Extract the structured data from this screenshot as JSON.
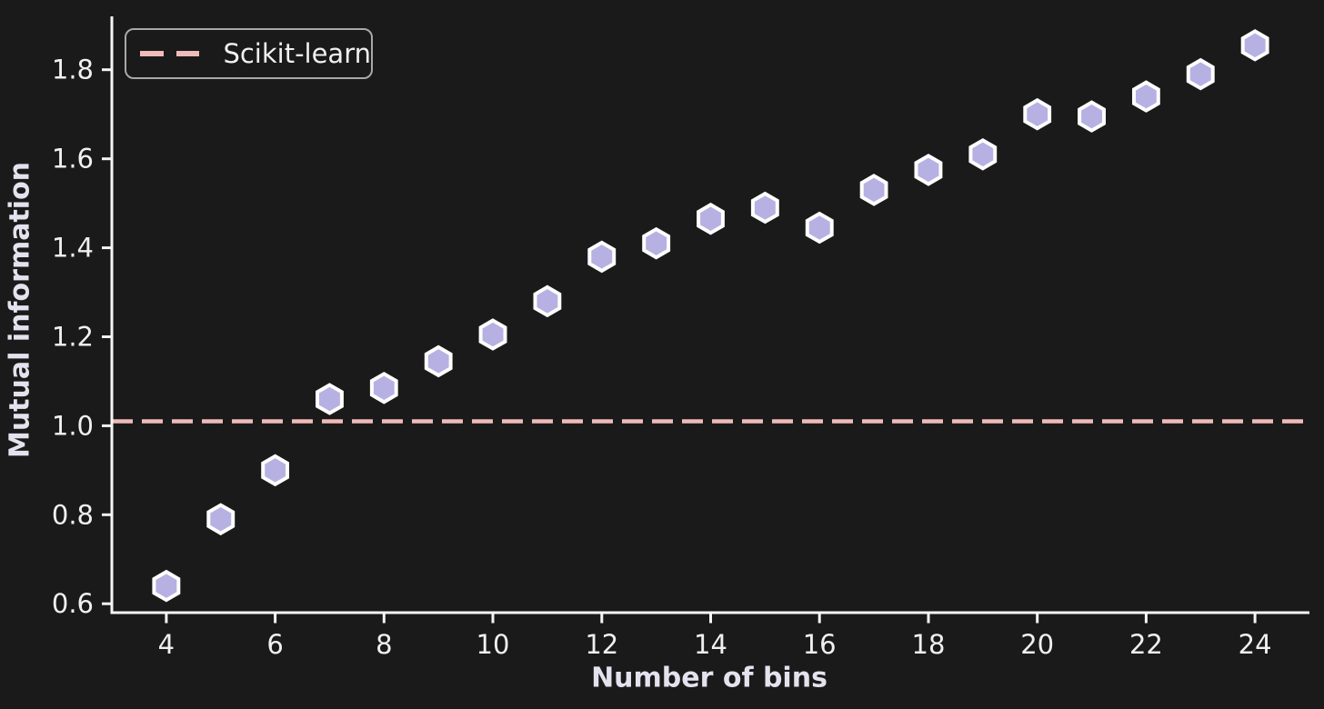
{
  "chart_data": {
    "type": "scatter",
    "title": "",
    "xlabel": "Number of bins",
    "ylabel": "Mutual information",
    "x": [
      4,
      5,
      6,
      7,
      8,
      9,
      10,
      11,
      12,
      13,
      14,
      15,
      16,
      17,
      18,
      19,
      20,
      21,
      22,
      23,
      24
    ],
    "y": [
      0.64,
      0.79,
      0.9,
      1.06,
      1.085,
      1.145,
      1.205,
      1.28,
      1.38,
      1.41,
      1.465,
      1.49,
      1.445,
      1.53,
      1.575,
      1.61,
      1.7,
      1.695,
      1.74,
      1.79,
      1.855
    ],
    "reference_line": {
      "label": "Scikit-learn",
      "value": 1.01,
      "style": "dashed",
      "color": "#f0baba"
    },
    "xlim": [
      3,
      25
    ],
    "ylim": [
      0.58,
      1.92
    ],
    "xticks": [
      4,
      6,
      8,
      10,
      12,
      14,
      16,
      18,
      20,
      22,
      24
    ],
    "xtick_labels": [
      "4",
      "6",
      "8",
      "10",
      "12",
      "14",
      "16",
      "18",
      "20",
      "22",
      "24"
    ],
    "yticks": [
      0.6,
      0.8,
      1.0,
      1.2,
      1.4,
      1.6,
      1.8
    ],
    "ytick_labels": [
      "0.6",
      "0.8",
      "1.0",
      "1.2",
      "1.4",
      "1.6",
      "1.8"
    ],
    "marker": {
      "shape": "hexagon",
      "fill": "#b6b1e2",
      "edge": "#fdfdfd"
    },
    "legend": {
      "position": "upper-left",
      "entries": [
        {
          "label": "Scikit-learn",
          "color": "#f0baba",
          "dash": true
        }
      ]
    },
    "grid": false,
    "colors": {
      "background": "#1a1a1a",
      "axis": "#f5f5f5",
      "tick_label": "#f0f0f0",
      "axis_label": "#e4e2ee",
      "legend_border": "#a8a8a8",
      "legend_text": "#f0f0f0"
    }
  }
}
